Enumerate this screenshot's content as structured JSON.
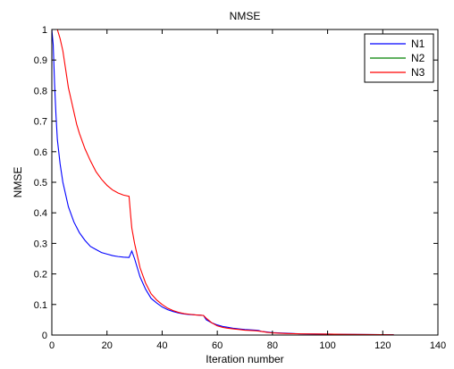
{
  "chart_data": {
    "type": "line",
    "title": "NMSE",
    "xlabel": "Iteration number",
    "ylabel": "NMSE",
    "xlim": [
      0,
      140
    ],
    "ylim": [
      0,
      1
    ],
    "xticks": [
      0,
      20,
      40,
      60,
      80,
      100,
      120,
      140
    ],
    "yticks": [
      0,
      0.1,
      0.2,
      0.3,
      0.4,
      0.5,
      0.6,
      0.7,
      0.8,
      0.9,
      1
    ],
    "xtick_labels": [
      "0",
      "20",
      "40",
      "60",
      "80",
      "100",
      "120",
      "140"
    ],
    "ytick_labels": [
      "0",
      "0.1",
      "0.2",
      "0.3",
      "0.4",
      "0.5",
      "0.6",
      "0.7",
      "0.8",
      "0.9",
      "1"
    ],
    "grid": false,
    "legend_position": "top-right",
    "series": [
      {
        "name": "N1",
        "color": "#0000ff",
        "points": [
          [
            0,
            1.0
          ],
          [
            0.5,
            0.95
          ],
          [
            1,
            0.82
          ],
          [
            1.5,
            0.72
          ],
          [
            2,
            0.64
          ],
          [
            3,
            0.56
          ],
          [
            4,
            0.5
          ],
          [
            5,
            0.46
          ],
          [
            6,
            0.42
          ],
          [
            8,
            0.37
          ],
          [
            10,
            0.335
          ],
          [
            12,
            0.31
          ],
          [
            14,
            0.29
          ],
          [
            16,
            0.28
          ],
          [
            18,
            0.27
          ],
          [
            20,
            0.265
          ],
          [
            22,
            0.26
          ],
          [
            24,
            0.257
          ],
          [
            26,
            0.255
          ],
          [
            28,
            0.254
          ],
          [
            29,
            0.275
          ],
          [
            30,
            0.25
          ],
          [
            31,
            0.22
          ],
          [
            32,
            0.19
          ],
          [
            34,
            0.15
          ],
          [
            36,
            0.12
          ],
          [
            38,
            0.105
          ],
          [
            40,
            0.092
          ],
          [
            42,
            0.083
          ],
          [
            44,
            0.077
          ],
          [
            46,
            0.072
          ],
          [
            48,
            0.069
          ],
          [
            50,
            0.067
          ],
          [
            52,
            0.066
          ],
          [
            54,
            0.065
          ],
          [
            55,
            0.064
          ],
          [
            56,
            0.05
          ],
          [
            57,
            0.045
          ],
          [
            58,
            0.04
          ],
          [
            60,
            0.033
          ],
          [
            62,
            0.028
          ],
          [
            64,
            0.025
          ],
          [
            66,
            0.022
          ],
          [
            68,
            0.02
          ],
          [
            70,
            0.018
          ],
          [
            72,
            0.017
          ],
          [
            74,
            0.016
          ],
          [
            75,
            0.015
          ],
          [
            76,
            0.012
          ],
          [
            78,
            0.01
          ],
          [
            80,
            0.008
          ],
          [
            85,
            0.006
          ],
          [
            90,
            0.004
          ],
          [
            100,
            0.003
          ],
          [
            110,
            0.002
          ],
          [
            124,
            0.001
          ]
        ]
      },
      {
        "name": "N2",
        "color": "#008000",
        "points": [
          [
            0,
            1.0
          ],
          [
            20,
            1.0
          ],
          [
            40,
            1.0
          ],
          [
            60,
            1.0
          ],
          [
            80,
            1.0
          ],
          [
            100,
            1.0
          ],
          [
            120,
            1.0
          ],
          [
            140,
            1.0
          ]
        ]
      },
      {
        "name": "N3",
        "color": "#ff0000",
        "points": [
          [
            1,
            1.0
          ],
          [
            2,
            1.0
          ],
          [
            3,
            0.97
          ],
          [
            4,
            0.93
          ],
          [
            5,
            0.87
          ],
          [
            6,
            0.81
          ],
          [
            7,
            0.77
          ],
          [
            8,
            0.73
          ],
          [
            9,
            0.69
          ],
          [
            10,
            0.66
          ],
          [
            12,
            0.61
          ],
          [
            14,
            0.57
          ],
          [
            16,
            0.535
          ],
          [
            18,
            0.51
          ],
          [
            20,
            0.49
          ],
          [
            22,
            0.475
          ],
          [
            24,
            0.465
          ],
          [
            26,
            0.458
          ],
          [
            28,
            0.454
          ],
          [
            28.5,
            0.4
          ],
          [
            29,
            0.35
          ],
          [
            30,
            0.3
          ],
          [
            31,
            0.26
          ],
          [
            32,
            0.22
          ],
          [
            34,
            0.17
          ],
          [
            36,
            0.135
          ],
          [
            38,
            0.115
          ],
          [
            40,
            0.1
          ],
          [
            42,
            0.088
          ],
          [
            44,
            0.08
          ],
          [
            46,
            0.074
          ],
          [
            48,
            0.07
          ],
          [
            50,
            0.068
          ],
          [
            52,
            0.066
          ],
          [
            54,
            0.065
          ],
          [
            55,
            0.064
          ],
          [
            56,
            0.055
          ],
          [
            58,
            0.04
          ],
          [
            60,
            0.03
          ],
          [
            62,
            0.025
          ],
          [
            64,
            0.022
          ],
          [
            66,
            0.02
          ],
          [
            68,
            0.018
          ],
          [
            70,
            0.016
          ],
          [
            74,
            0.014
          ],
          [
            76,
            0.012
          ],
          [
            78,
            0.009
          ],
          [
            80,
            0.007
          ],
          [
            85,
            0.005
          ],
          [
            90,
            0.004
          ],
          [
            100,
            0.003
          ],
          [
            110,
            0.002
          ],
          [
            124,
            0.001
          ]
        ]
      }
    ]
  }
}
